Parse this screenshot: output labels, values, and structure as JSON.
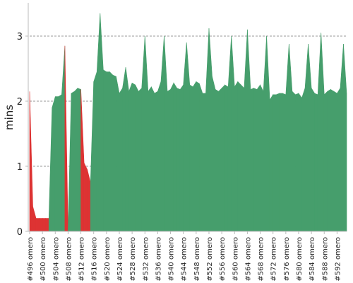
{
  "chart_data": {
    "type": "area",
    "title": "",
    "xlabel": "",
    "ylabel": "mins",
    "ylim": [
      0,
      3.5
    ],
    "yticks": [
      0,
      1,
      2,
      3
    ],
    "grid": "horizontal dashed",
    "legend": "none",
    "x_start_build": 496,
    "x_step_builds": 4,
    "x_label_suffix": " omero",
    "x": [
      496,
      497,
      498,
      499,
      500,
      501,
      502,
      503,
      504,
      505,
      506,
      507,
      508,
      509,
      510,
      511,
      512,
      513,
      514,
      515,
      516,
      517,
      518,
      519,
      520,
      521,
      522,
      523,
      524,
      525,
      526,
      527,
      528,
      529,
      530,
      531,
      532,
      533,
      534,
      535,
      536,
      537,
      538,
      539,
      540,
      541,
      542,
      543,
      544,
      545,
      546,
      547,
      548,
      549,
      550,
      551,
      552,
      553,
      554,
      555,
      556,
      557,
      558,
      559,
      560,
      561,
      562,
      563,
      564,
      565,
      566,
      567,
      568,
      569,
      570,
      571,
      572,
      573,
      574,
      575,
      576,
      577,
      578,
      579,
      580,
      581,
      582,
      583,
      584,
      585,
      586,
      587,
      588,
      589,
      590,
      591,
      592,
      593,
      594,
      595
    ],
    "values": [
      2.15,
      0.38,
      0.2,
      0.2,
      0.2,
      0.2,
      0.2,
      1.9,
      2.07,
      2.07,
      2.1,
      2.85,
      0.02,
      2.12,
      2.15,
      2.2,
      2.18,
      1.05,
      0.95,
      0.75,
      2.3,
      2.45,
      3.35,
      2.48,
      2.45,
      2.45,
      2.4,
      2.38,
      2.12,
      2.2,
      2.52,
      2.15,
      2.28,
      2.25,
      2.15,
      2.2,
      3.0,
      2.15,
      2.22,
      2.12,
      2.15,
      2.3,
      3.0,
      2.15,
      2.18,
      2.28,
      2.2,
      2.18,
      2.25,
      2.9,
      2.25,
      2.22,
      2.3,
      2.27,
      2.12,
      2.12,
      3.12,
      2.38,
      2.18,
      2.15,
      2.2,
      2.25,
      2.22,
      3.0,
      2.22,
      2.3,
      2.25,
      2.2,
      3.1,
      2.18,
      2.2,
      2.18,
      2.25,
      2.15,
      3.0,
      2.02,
      2.1,
      2.1,
      2.12,
      2.12,
      2.1,
      2.88,
      2.15,
      2.1,
      2.12,
      2.05,
      2.2,
      2.88,
      2.2,
      2.12,
      2.1,
      3.05,
      2.1,
      2.15,
      2.18,
      2.15,
      2.12,
      2.2,
      2.88,
      2.12
    ],
    "status": [
      "ok",
      "fail",
      "fail",
      "fail",
      "fail",
      "fail",
      "fail",
      "ok",
      "ok",
      "ok",
      "ok",
      "ok",
      "fail",
      "ok",
      "ok",
      "ok",
      "ok",
      "fail",
      "fail",
      "fail",
      "ok",
      "ok",
      "ok",
      "ok",
      "ok",
      "ok",
      "ok",
      "ok",
      "ok",
      "ok",
      "ok",
      "ok",
      "ok",
      "ok",
      "ok",
      "ok",
      "ok",
      "ok",
      "ok",
      "ok",
      "ok",
      "ok",
      "ok",
      "ok",
      "ok",
      "ok",
      "ok",
      "ok",
      "ok",
      "ok",
      "ok",
      "ok",
      "ok",
      "ok",
      "ok",
      "ok",
      "ok",
      "ok",
      "ok",
      "ok",
      "ok",
      "ok",
      "ok",
      "ok",
      "ok",
      "ok",
      "ok",
      "ok",
      "ok",
      "ok",
      "ok",
      "ok",
      "ok",
      "ok",
      "ok",
      "ok",
      "ok",
      "ok",
      "ok",
      "ok",
      "ok",
      "ok",
      "ok",
      "ok",
      "ok",
      "ok",
      "ok",
      "ok",
      "ok",
      "ok",
      "ok",
      "ok",
      "ok",
      "ok",
      "ok",
      "ok",
      "ok",
      "ok",
      "ok",
      "ok"
    ],
    "colors": {
      "ok": "#469e6c",
      "fail": "#dd3333",
      "grid": "#777777",
      "axis": "#bbbbbb"
    }
  }
}
